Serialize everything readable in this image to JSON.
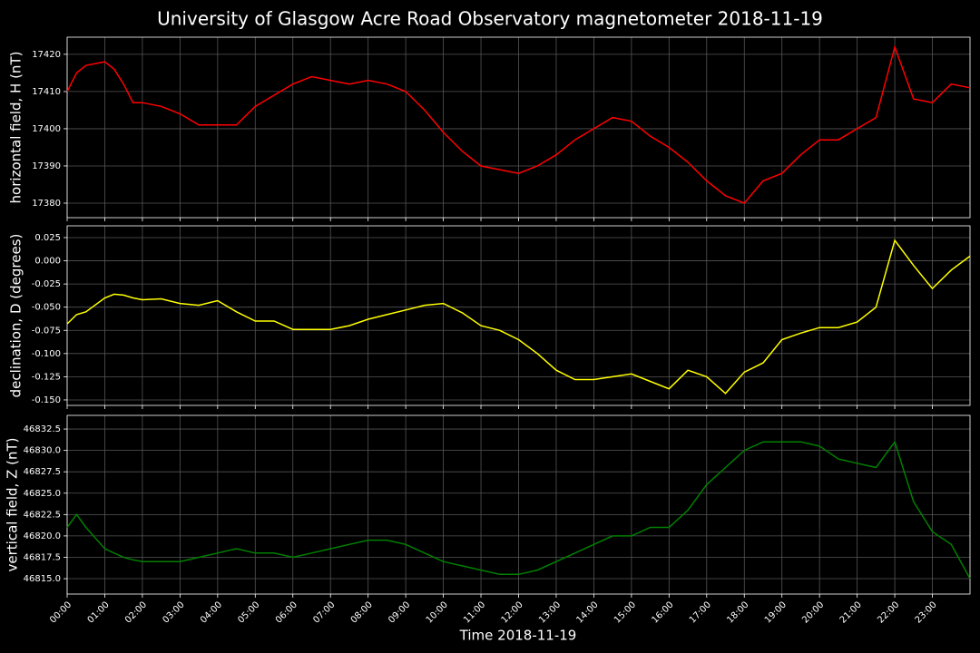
{
  "chart_data": [
    {
      "type": "line",
      "title": "University of Glasgow Acre Road Observatory magnetometer 2018-11-19",
      "ylabel": "horizontal field, H (nT)",
      "color": "#ff0000",
      "grid": true,
      "x": [
        0,
        0.25,
        0.5,
        1,
        1.25,
        1.5,
        1.75,
        2,
        2.5,
        3,
        3.5,
        4,
        4.5,
        5,
        5.5,
        6,
        6.5,
        7,
        7.5,
        8,
        8.5,
        9,
        9.5,
        10,
        10.5,
        11,
        11.5,
        12,
        12.5,
        13,
        13.5,
        14,
        14.5,
        15,
        15.5,
        16,
        16.5,
        17,
        17.5,
        18,
        18.5,
        19,
        19.5,
        20,
        20.5,
        21,
        21.5,
        22,
        22.5,
        23,
        23.5,
        24
      ],
      "values": [
        17410,
        17415,
        17417,
        17418,
        17416,
        17412,
        17407,
        17407,
        17406,
        17404,
        17401,
        17401,
        17401,
        17406,
        17409,
        17412,
        17414,
        17413,
        17412,
        17413,
        17412,
        17410,
        17405,
        17399,
        17394,
        17390,
        17389,
        17388,
        17390,
        17393,
        17397,
        17400,
        17403,
        17402,
        17398,
        17395,
        17391,
        17386,
        17382,
        17380,
        17386,
        17388,
        17393,
        17397,
        17397,
        17400,
        17403,
        17422,
        17408,
        17407,
        17412,
        17411
      ],
      "xlim": [
        0,
        24
      ],
      "ylim": [
        17376.1,
        17424.6
      ],
      "yticks": [
        17380,
        17390,
        17400,
        17410,
        17420
      ]
    },
    {
      "type": "line",
      "ylabel": "declination, D (degrees)",
      "color": "#ffff00",
      "grid": true,
      "x": [
        0,
        0.25,
        0.5,
        1,
        1.25,
        1.5,
        1.75,
        2,
        2.5,
        3,
        3.5,
        4,
        4.5,
        5,
        5.5,
        6,
        6.5,
        7,
        7.5,
        8,
        8.5,
        9,
        9.5,
        10,
        10.5,
        11,
        11.5,
        12,
        12.5,
        13,
        13.5,
        14,
        14.5,
        15,
        15.5,
        16,
        16.5,
        17,
        17.5,
        18,
        18.5,
        19,
        19.5,
        20,
        20.5,
        21,
        21.5,
        22,
        22.5,
        23,
        23.5,
        24
      ],
      "values": [
        -0.068,
        -0.058,
        -0.055,
        -0.04,
        -0.036,
        -0.037,
        -0.04,
        -0.042,
        -0.041,
        -0.046,
        -0.048,
        -0.043,
        -0.055,
        -0.065,
        -0.065,
        -0.074,
        -0.074,
        -0.074,
        -0.07,
        -0.063,
        -0.058,
        -0.053,
        -0.048,
        -0.046,
        -0.056,
        -0.07,
        -0.075,
        -0.085,
        -0.1,
        -0.118,
        -0.128,
        -0.128,
        -0.125,
        -0.122,
        -0.13,
        -0.138,
        -0.118,
        -0.125,
        -0.143,
        -0.12,
        -0.11,
        -0.085,
        -0.078,
        -0.072,
        -0.072,
        -0.066,
        -0.05,
        0.022,
        -0.005,
        -0.03,
        -0.01,
        0.005
      ],
      "xlim": [
        0,
        24
      ],
      "ylim": [
        -0.1559,
        0.0377
      ],
      "yticks": [
        0.025,
        {
          "value": 0,
          "label": "0.000"
        },
        -0.025,
        {
          "value": -0.05,
          "label": "-0.050"
        },
        -0.075,
        {
          "value": -0.1,
          "label": "-0.100"
        },
        -0.125,
        {
          "value": -0.15,
          "label": "-0.150"
        }
      ]
    },
    {
      "type": "line",
      "ylabel": "vertical field, Z (nT)",
      "xlabel": "Time 2018-11-19",
      "color": "#008000",
      "grid": true,
      "x": [
        0,
        0.25,
        0.5,
        1,
        1.25,
        1.5,
        1.75,
        2,
        2.5,
        3,
        3.5,
        4,
        4.5,
        5,
        5.5,
        6,
        6.5,
        7,
        7.5,
        8,
        8.5,
        9,
        9.5,
        10,
        10.5,
        11,
        11.5,
        12,
        12.5,
        13,
        13.5,
        14,
        14.5,
        15,
        15.5,
        16,
        16.5,
        17,
        17.5,
        18,
        18.5,
        19,
        19.5,
        20,
        20.5,
        21,
        21.5,
        22,
        22.5,
        23,
        23.5,
        24
      ],
      "values": [
        46821,
        46822.5,
        46821,
        46818.5,
        46818,
        46817.5,
        46817.2,
        46817,
        46817,
        46817,
        46817.5,
        46818,
        46818.5,
        46818,
        46818,
        46817.5,
        46818,
        46818.5,
        46819,
        46819.5,
        46819.5,
        46819,
        46818,
        46817,
        46816.5,
        46816,
        46815.5,
        46815.5,
        46816,
        46817,
        46818,
        46819,
        46820,
        46820,
        46821,
        46821,
        46823,
        46826,
        46828,
        46830,
        46831,
        46831,
        46831,
        46830.5,
        46829,
        46828.5,
        46828,
        46831,
        46824,
        46820.5,
        46819,
        46815
      ],
      "xlim": [
        0,
        24
      ],
      "ylim": [
        46813.2,
        46834.1
      ],
      "yticks": [
        {
          "value": 46815,
          "label": "46815.0"
        },
        46817.5,
        {
          "value": 46820,
          "label": "46820.0"
        },
        46822.5,
        {
          "value": 46825,
          "label": "46825.0"
        },
        46827.5,
        {
          "value": 46830,
          "label": "46830.0"
        },
        46832.5
      ],
      "xticks": [
        {
          "value": 0,
          "label": "00:00"
        },
        {
          "value": 1,
          "label": "01:00"
        },
        {
          "value": 2,
          "label": "02:00"
        },
        {
          "value": 3,
          "label": "03:00"
        },
        {
          "value": 4,
          "label": "04:00"
        },
        {
          "value": 5,
          "label": "05:00"
        },
        {
          "value": 6,
          "label": "06:00"
        },
        {
          "value": 7,
          "label": "07:00"
        },
        {
          "value": 8,
          "label": "08:00"
        },
        {
          "value": 9,
          "label": "09:00"
        },
        {
          "value": 10,
          "label": "10:00"
        },
        {
          "value": 11,
          "label": "11:00"
        },
        {
          "value": 12,
          "label": "12:00"
        },
        {
          "value": 13,
          "label": "13:00"
        },
        {
          "value": 14,
          "label": "14:00"
        },
        {
          "value": 15,
          "label": "15:00"
        },
        {
          "value": 16,
          "label": "16:00"
        },
        {
          "value": 17,
          "label": "17:00"
        },
        {
          "value": 18,
          "label": "18:00"
        },
        {
          "value": 19,
          "label": "19:00"
        },
        {
          "value": 20,
          "label": "20:00"
        },
        {
          "value": 21,
          "label": "21:00"
        },
        {
          "value": 22,
          "label": "22:00"
        },
        {
          "value": 23,
          "label": "23:00"
        }
      ]
    }
  ]
}
